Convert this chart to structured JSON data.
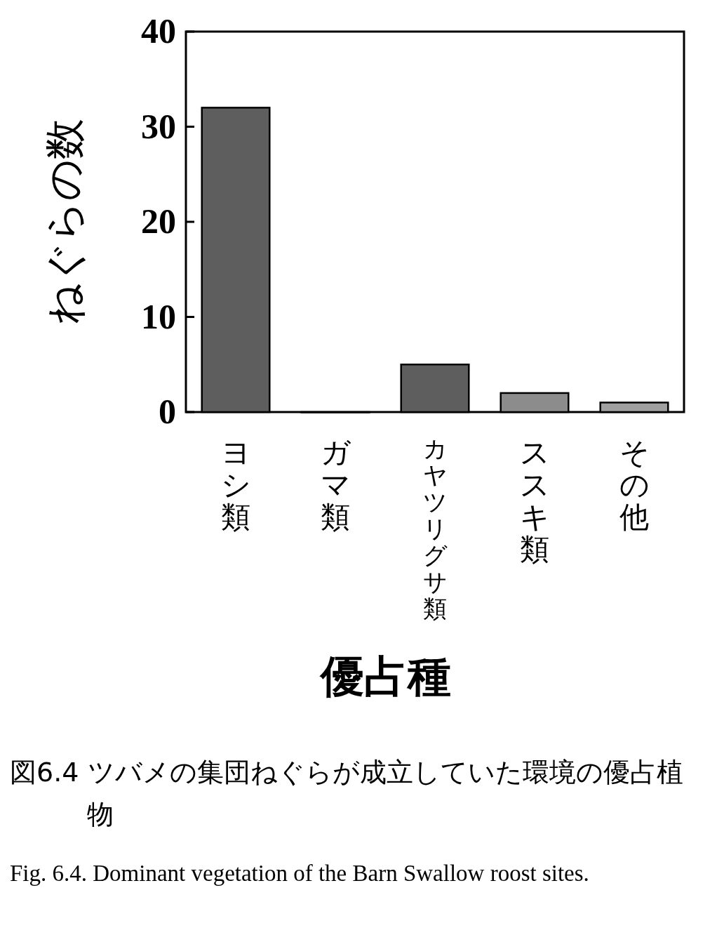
{
  "chart_data": {
    "type": "bar",
    "xlabel": "優占種",
    "ylabel": "ねぐらの数",
    "categories": [
      "ヨシ類",
      "ガマ類",
      "カヤツリグサ類",
      "ススキ類",
      "その他"
    ],
    "values": [
      32,
      0,
      5,
      2,
      1
    ],
    "colors": [
      "#5e5e5e",
      "#5e5e5e",
      "#5e5e5e",
      "#8c8c8c",
      "#a0a0a0"
    ],
    "ylim": [
      0,
      40
    ],
    "yticks": [
      0,
      10,
      20,
      30,
      40
    ],
    "annotations": [
      "図6.4 ツバメの集団ねぐらが成立していた環境の優占植物",
      "Fig. 6.4. Dominant vegetation of the Barn Swallow roost sites."
    ]
  }
}
